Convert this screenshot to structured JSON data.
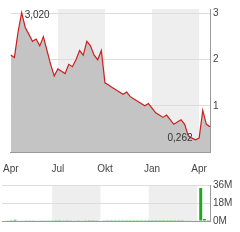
{
  "chart_data": [
    {
      "type": "line",
      "categories": [
        "Apr",
        null,
        null,
        null,
        null,
        null,
        null,
        null,
        null,
        null,
        null,
        null,
        null,
        "Jul",
        null,
        null,
        null,
        null,
        null,
        null,
        null,
        null,
        null,
        null,
        null,
        null,
        "Okt",
        null,
        null,
        null,
        null,
        null,
        null,
        null,
        null,
        null,
        null,
        null,
        null,
        "Jan",
        null,
        null,
        null,
        null,
        null,
        null,
        null,
        null,
        null,
        null,
        null,
        null,
        "Apr",
        null,
        null,
        null
      ],
      "values": [
        2.1,
        2.05,
        2.6,
        3.02,
        2.7,
        2.55,
        2.4,
        2.45,
        2.3,
        2.5,
        2.2,
        1.9,
        1.65,
        1.8,
        1.75,
        1.7,
        1.9,
        1.85,
        2.0,
        2.2,
        2.1,
        2.4,
        2.3,
        2.1,
        2.0,
        2.2,
        1.5,
        1.45,
        1.4,
        1.35,
        1.3,
        1.25,
        1.3,
        1.2,
        1.15,
        1.1,
        1.05,
        1.0,
        1.05,
        0.95,
        0.85,
        0.8,
        0.75,
        0.8,
        0.7,
        0.6,
        0.65,
        0.7,
        0.6,
        0.35,
        0.3,
        0.262,
        0.3,
        0.9,
        0.6,
        0.55
      ],
      "color": "#cc2020",
      "ylim": [
        0,
        3.1
      ],
      "yticks": [
        1,
        2,
        3
      ],
      "grid": true,
      "annotations": [
        {
          "text": "3,020",
          "value": 3.02
        },
        {
          "text": "0,262",
          "value": 0.262
        }
      ]
    },
    {
      "type": "bar",
      "categories": [
        "Apr",
        null,
        null,
        null,
        null,
        null,
        null,
        null,
        null,
        null,
        null,
        null,
        null,
        "Jul",
        null,
        null,
        null,
        null,
        null,
        null,
        null,
        null,
        null,
        null,
        null,
        null,
        "Okt",
        null,
        null,
        null,
        null,
        null,
        null,
        null,
        null,
        null,
        null,
        null,
        null,
        "Jan",
        null,
        null,
        null,
        null,
        null,
        null,
        null,
        null,
        null,
        null,
        null,
        null,
        "Apr",
        null,
        null,
        null
      ],
      "values": [
        0.5,
        0.4,
        0.8,
        1.2,
        0.6,
        0.4,
        0.3,
        0.3,
        0.3,
        0.4,
        0.3,
        0.3,
        0.3,
        0.3,
        0.2,
        0.2,
        0.3,
        0.2,
        0.3,
        0.4,
        0.3,
        0.4,
        0.3,
        0.2,
        0.2,
        0.3,
        0.5,
        0.3,
        0.2,
        0.2,
        0.2,
        0.2,
        0.2,
        0.2,
        0.2,
        0.2,
        0.2,
        0.2,
        0.2,
        0.2,
        0.2,
        0.2,
        0.2,
        0.2,
        0.2,
        0.2,
        0.2,
        0.2,
        0.2,
        0.4,
        0.4,
        0.5,
        0.6,
        33,
        2,
        0.8
      ],
      "color": "#1fa81f",
      "ylim": [
        0,
        36
      ],
      "yticks": [
        {
          "value": 0,
          "label": "0M"
        },
        {
          "value": 18,
          "label": "18M"
        },
        {
          "value": 36,
          "label": "36M"
        }
      ],
      "grid": true,
      "tick_labels": "y"
    }
  ]
}
